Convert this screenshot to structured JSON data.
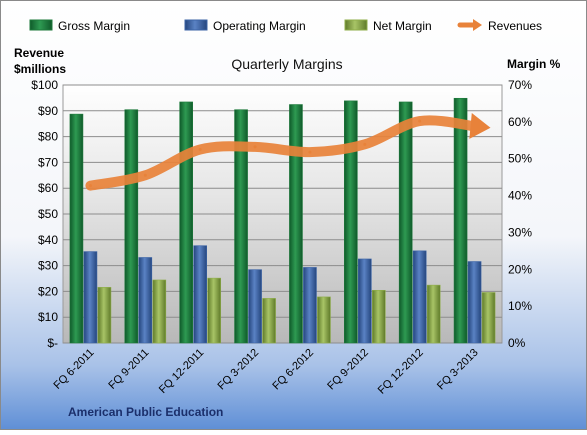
{
  "chart_data": {
    "type": "bar",
    "title": "Quarterly Margins",
    "footer_label": "American Public Education",
    "left_axis": {
      "label_line1": "Revenue",
      "label_line2": "$millions",
      "ylim": [
        0,
        100
      ],
      "ticks": [
        {
          "value": 0,
          "label": "$-"
        },
        {
          "value": 10,
          "label": "$10"
        },
        {
          "value": 20,
          "label": "$20"
        },
        {
          "value": 30,
          "label": "$30"
        },
        {
          "value": 40,
          "label": "$40"
        },
        {
          "value": 50,
          "label": "$50"
        },
        {
          "value": 60,
          "label": "$60"
        },
        {
          "value": 70,
          "label": "$70"
        },
        {
          "value": 80,
          "label": "$80"
        },
        {
          "value": 90,
          "label": "$90"
        },
        {
          "value": 100,
          "label": "$100"
        }
      ]
    },
    "right_axis": {
      "label": "Margin %",
      "ylim": [
        0,
        70
      ],
      "ticks": [
        {
          "value": 0,
          "label": "0%"
        },
        {
          "value": 10,
          "label": "10%"
        },
        {
          "value": 20,
          "label": "20%"
        },
        {
          "value": 30,
          "label": "30%"
        },
        {
          "value": 40,
          "label": "40%"
        },
        {
          "value": 50,
          "label": "50%"
        },
        {
          "value": 60,
          "label": "60%"
        },
        {
          "value": 70,
          "label": "70%"
        }
      ]
    },
    "categories": [
      "FQ 6-2011",
      "FQ 9-2011",
      "FQ 12-2011",
      "FQ 3-2012",
      "FQ 6-2012",
      "FQ 9-2012",
      "FQ 12-2012",
      "FQ 3-2013"
    ],
    "series": [
      {
        "name": "Gross Margin",
        "kind": "bar",
        "axis": "right",
        "color": "#1e7a3c",
        "values": [
          62.1,
          63.3,
          65.4,
          63.3,
          64.7,
          65.7,
          65.4,
          66.4
        ]
      },
      {
        "name": "Operating Margin",
        "kind": "bar",
        "axis": "right",
        "color": "#3c64a6",
        "values": [
          24.8,
          23.2,
          26.4,
          19.9,
          20.5,
          22.8,
          25.0,
          22.1
        ]
      },
      {
        "name": "Net Margin",
        "kind": "bar",
        "axis": "right",
        "color": "#8fae4a",
        "values": [
          15.1,
          17.1,
          17.6,
          12.1,
          12.5,
          14.3,
          15.7,
          13.7
        ]
      },
      {
        "name": "Revenues",
        "kind": "line",
        "axis": "left",
        "color": "#e8823a",
        "values": [
          61,
          65,
          75,
          76,
          74,
          77,
          86,
          84
        ]
      }
    ],
    "grid": true,
    "legend_position": "top"
  }
}
